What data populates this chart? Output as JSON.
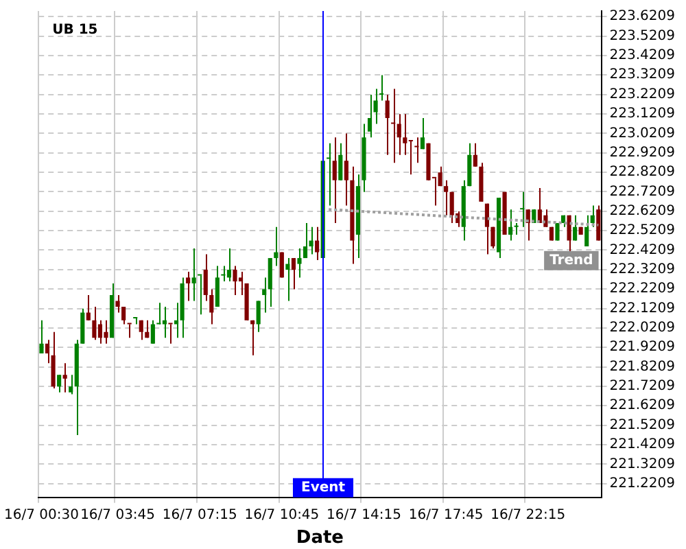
{
  "chart_data": {
    "type": "candlestick",
    "title": "UB 15",
    "xlabel": "Date",
    "categories": [
      "16/7 00:30",
      null,
      null,
      null,
      null,
      null,
      null,
      null,
      null,
      null,
      null,
      null,
      null,
      "16/7 03:45",
      null,
      null,
      null,
      null,
      null,
      null,
      null,
      null,
      null,
      null,
      null,
      null,
      null,
      "16/7 07:15",
      null,
      null,
      null,
      null,
      null,
      null,
      null,
      null,
      null,
      null,
      null,
      null,
      null,
      "16/7 10:45",
      null,
      null,
      null,
      null,
      null,
      null,
      null,
      null,
      null,
      null,
      null,
      null,
      null,
      "16/7 14:15",
      null,
      null,
      null,
      null,
      null,
      null,
      null,
      null,
      null,
      null,
      null,
      null,
      null,
      "16/7 17:45",
      null,
      null,
      null,
      null,
      null,
      null,
      null,
      null,
      null,
      null,
      null,
      null,
      null,
      "16/7 22:15",
      null,
      null,
      null,
      null,
      null,
      null,
      null,
      null,
      null,
      null,
      null,
      null
    ],
    "ohlc": [
      [
        221.89,
        222.06,
        221.89,
        221.94
      ],
      [
        221.94,
        221.96,
        221.84,
        221.89
      ],
      [
        221.88,
        222.0,
        221.71,
        221.72
      ],
      [
        221.72,
        221.78,
        221.69,
        221.78
      ],
      [
        221.78,
        221.84,
        221.69,
        221.76
      ],
      [
        221.69,
        221.78,
        221.68,
        221.72
      ],
      [
        221.72,
        221.96,
        221.47,
        221.94
      ],
      [
        221.94,
        222.12,
        221.94,
        222.1
      ],
      [
        222.1,
        222.19,
        222.06,
        222.06
      ],
      [
        222.06,
        222.13,
        221.96,
        221.97
      ],
      [
        222.04,
        222.06,
        221.94,
        221.97
      ],
      [
        222.0,
        222.06,
        221.94,
        221.97
      ],
      [
        221.97,
        222.25,
        221.97,
        222.19
      ],
      [
        222.16,
        222.19,
        222.1,
        222.13
      ],
      [
        222.13,
        222.13,
        222.04,
        222.06
      ],
      [
        222.04,
        222.04,
        221.97,
        222.04
      ],
      [
        222.07,
        222.07,
        222.04,
        222.07
      ],
      [
        222.06,
        222.06,
        221.96,
        222.0
      ],
      [
        222.0,
        222.06,
        221.97,
        221.97
      ],
      [
        221.94,
        222.06,
        221.94,
        222.04
      ],
      [
        222.04,
        222.15,
        222.04,
        222.04
      ],
      [
        222.04,
        222.13,
        221.97,
        222.06
      ],
      [
        222.04,
        222.04,
        221.94,
        222.04
      ],
      [
        222.04,
        222.15,
        221.97,
        222.06
      ],
      [
        222.06,
        222.28,
        221.97,
        222.25
      ],
      [
        222.28,
        222.31,
        222.16,
        222.25
      ],
      [
        222.25,
        222.43,
        222.16,
        222.28
      ],
      [
        222.29,
        222.29,
        222.09,
        222.29
      ],
      [
        222.32,
        222.4,
        222.16,
        222.19
      ],
      [
        222.19,
        222.22,
        222.04,
        222.1
      ],
      [
        222.13,
        222.34,
        222.13,
        222.28
      ],
      [
        222.29,
        222.34,
        222.26,
        222.29
      ],
      [
        222.28,
        222.43,
        222.26,
        222.32
      ],
      [
        222.32,
        222.34,
        222.19,
        222.26
      ],
      [
        222.28,
        222.31,
        222.19,
        222.26
      ],
      [
        222.25,
        222.25,
        222.06,
        222.06
      ],
      [
        222.06,
        222.06,
        221.88,
        222.04
      ],
      [
        222.04,
        222.16,
        222.0,
        222.16
      ],
      [
        222.19,
        222.28,
        222.1,
        222.22
      ],
      [
        222.22,
        222.38,
        222.13,
        222.38
      ],
      [
        222.38,
        222.54,
        222.34,
        222.41
      ],
      [
        222.41,
        222.41,
        222.28,
        222.28
      ],
      [
        222.32,
        222.38,
        222.16,
        222.35
      ],
      [
        222.38,
        222.38,
        222.22,
        222.32
      ],
      [
        222.35,
        222.43,
        222.28,
        222.38
      ],
      [
        222.38,
        222.56,
        222.38,
        222.44
      ],
      [
        222.44,
        222.54,
        222.4,
        222.47
      ],
      [
        222.47,
        222.54,
        222.37,
        222.41
      ],
      [
        222.38,
        222.88,
        222.38,
        222.88
      ],
      [
        222.89,
        222.97,
        222.65,
        222.89
      ],
      [
        222.88,
        223.0,
        222.56,
        222.78
      ],
      [
        222.78,
        222.97,
        222.78,
        222.91
      ],
      [
        222.88,
        223.02,
        222.65,
        222.78
      ],
      [
        222.78,
        222.85,
        222.35,
        222.47
      ],
      [
        222.5,
        222.81,
        222.38,
        222.75
      ],
      [
        222.78,
        223.07,
        222.72,
        223.0
      ],
      [
        223.03,
        223.22,
        223.0,
        223.1
      ],
      [
        223.13,
        223.25,
        223.07,
        223.19
      ],
      [
        223.22,
        223.32,
        223.19,
        223.22
      ],
      [
        223.19,
        223.22,
        222.91,
        223.1
      ],
      [
        223.07,
        223.25,
        222.87,
        223.07
      ],
      [
        223.07,
        223.12,
        222.91,
        223.0
      ],
      [
        223.0,
        223.12,
        222.91,
        222.97
      ],
      [
        222.98,
        222.98,
        222.81,
        222.98
      ],
      [
        222.95,
        223.0,
        222.87,
        222.95
      ],
      [
        222.94,
        223.1,
        222.94,
        223.0
      ],
      [
        222.97,
        222.97,
        222.78,
        222.78
      ],
      [
        222.79,
        222.79,
        222.65,
        222.79
      ],
      [
        222.82,
        222.85,
        222.75,
        222.75
      ],
      [
        222.75,
        222.78,
        222.6,
        222.72
      ],
      [
        222.72,
        222.72,
        222.56,
        222.6
      ],
      [
        222.61,
        222.62,
        222.54,
        222.56
      ],
      [
        222.54,
        222.78,
        222.47,
        222.75
      ],
      [
        222.75,
        222.97,
        222.75,
        222.91
      ],
      [
        222.91,
        222.97,
        222.85,
        222.85
      ],
      [
        222.85,
        222.87,
        222.67,
        222.67
      ],
      [
        222.66,
        222.66,
        222.4,
        222.54
      ],
      [
        222.54,
        222.54,
        222.43,
        222.44
      ],
      [
        222.41,
        222.69,
        222.38,
        222.69
      ],
      [
        222.72,
        222.72,
        222.5,
        222.5
      ],
      [
        222.5,
        222.63,
        222.47,
        222.54
      ],
      [
        222.54,
        222.56,
        222.5,
        222.54
      ],
      [
        222.63,
        222.72,
        222.54,
        222.63
      ],
      [
        222.63,
        222.63,
        222.47,
        222.56
      ],
      [
        222.56,
        222.63,
        222.56,
        222.63
      ],
      [
        222.63,
        222.74,
        222.56,
        222.56
      ],
      [
        222.6,
        222.63,
        222.54,
        222.54
      ],
      [
        222.54,
        222.54,
        222.47,
        222.47
      ],
      [
        222.47,
        222.56,
        222.47,
        222.56
      ],
      [
        222.56,
        222.6,
        222.54,
        222.6
      ],
      [
        222.6,
        222.6,
        222.41,
        222.47
      ],
      [
        222.47,
        222.6,
        222.47,
        222.54
      ],
      [
        222.54,
        222.54,
        222.5,
        222.5
      ],
      [
        222.44,
        222.6,
        222.44,
        222.54
      ],
      [
        222.56,
        222.65,
        222.54,
        222.6
      ],
      [
        222.63,
        222.65,
        222.47,
        222.47
      ]
    ],
    "colors": [
      "#008000",
      "#800000",
      "#800000",
      "#008000",
      "#800000",
      "#008000",
      "#008000",
      "#008000",
      "#800000",
      "#800000",
      "#800000",
      "#800000",
      "#008000",
      "#800000",
      "#800000",
      "#800000",
      "#008000",
      "#800000",
      "#800000",
      "#008000",
      "#008000",
      "#008000",
      "#800000",
      "#008000",
      "#008000",
      "#800000",
      "#008000",
      "#008000",
      "#800000",
      "#800000",
      "#008000",
      "#008000",
      "#008000",
      "#800000",
      "#800000",
      "#800000",
      "#800000",
      "#008000",
      "#008000",
      "#008000",
      "#008000",
      "#800000",
      "#008000",
      "#800000",
      "#008000",
      "#008000",
      "#008000",
      "#800000",
      "#008000",
      "#008000",
      "#800000",
      "#008000",
      "#800000",
      "#800000",
      "#008000",
      "#008000",
      "#008000",
      "#008000",
      "#008000",
      "#800000",
      "#800000",
      "#800000",
      "#800000",
      "#800000",
      "#800000",
      "#008000",
      "#800000",
      "#800000",
      "#800000",
      "#800000",
      "#800000",
      "#800000",
      "#008000",
      "#008000",
      "#800000",
      "#800000",
      "#800000",
      "#800000",
      "#008000",
      "#800000",
      "#008000",
      "#008000",
      "#008000",
      "#800000",
      "#008000",
      "#800000",
      "#800000",
      "#800000",
      "#008000",
      "#008000",
      "#800000",
      "#008000",
      "#800000",
      "#008000",
      "#008000",
      "#800000"
    ],
    "series": [
      {
        "name": "Trend",
        "type": "line",
        "color": "#a0a0a0",
        "line_style": "dotted",
        "values": [
          null,
          null,
          null,
          null,
          null,
          null,
          null,
          null,
          null,
          null,
          null,
          null,
          null,
          null,
          null,
          null,
          null,
          null,
          null,
          null,
          null,
          null,
          null,
          null,
          null,
          null,
          null,
          null,
          null,
          null,
          null,
          null,
          null,
          null,
          null,
          null,
          null,
          null,
          null,
          null,
          null,
          null,
          null,
          null,
          null,
          null,
          null,
          null,
          null,
          222.63,
          null,
          null,
          null,
          null,
          null,
          null,
          null,
          null,
          null,
          null,
          null,
          null,
          null,
          null,
          null,
          null,
          null,
          null,
          null,
          null,
          null,
          null,
          null,
          null,
          null,
          null,
          null,
          null,
          null,
          null,
          null,
          null,
          null,
          null,
          null,
          null,
          null,
          null,
          null,
          null,
          null,
          null,
          null,
          null,
          null,
          222.55
        ]
      }
    ],
    "ylim": [
      221.15,
      223.65
    ],
    "yticks": [
      221.2209,
      221.3209,
      221.4209,
      221.5209,
      221.6209,
      221.7209,
      221.8209,
      221.9209,
      222.0209,
      222.1209,
      222.2209,
      222.3209,
      222.4209,
      222.5209,
      222.6209,
      222.7209,
      222.8209,
      222.9209,
      223.0209,
      223.1209,
      223.2209,
      223.3209,
      223.4209,
      223.5209,
      223.6209
    ],
    "grid": true,
    "annotations": [
      "Event"
    ]
  }
}
